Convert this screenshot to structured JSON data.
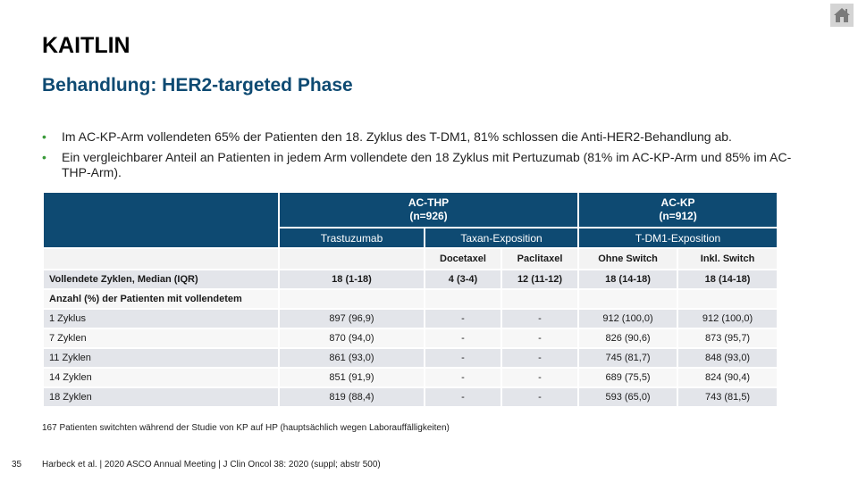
{
  "header": {
    "title": "KAITLIN",
    "subtitle": "Behandlung: HER2-targeted Phase"
  },
  "bullets": [
    "Im AC-KP-Arm vollendeten 65% der Patienten den 18. Zyklus des T-DM1, 81% schlossen die Anti-HER2-Behandlung ab.",
    "Ein vergleichbarer Anteil an Patienten in jedem Arm vollendete den 18 Zyklus mit Pertuzumab (81% im AC-KP-Arm und 85% im AC-THP-Arm)."
  ],
  "table": {
    "group_headers": [
      {
        "label": "AC-THP",
        "n": "(n=926)"
      },
      {
        "label": "AC-KP",
        "n": "(n=912)"
      }
    ],
    "sub_headers": [
      "Trastuzumab",
      "Taxan-Exposition",
      "T-DM1-Exposition"
    ],
    "sub_sub_headers": [
      "Docetaxel",
      "Paclitaxel",
      "Ohne Switch",
      "Inkl. Switch"
    ],
    "median_row": {
      "label": "Vollendete Zyklen, Median (IQR)",
      "values": [
        "18 (1-18)",
        "4 (3-4)",
        "12 (11-12)",
        "18 (14-18)",
        "18 (14-18)"
      ]
    },
    "section_label": "Anzahl (%) der Patienten mit vollendetem",
    "rows": [
      {
        "label": "1 Zyklus",
        "values": [
          "897 (96,9)",
          "-",
          "-",
          "912 (100,0)",
          "912 (100,0)"
        ]
      },
      {
        "label": "7 Zyklen",
        "values": [
          "870 (94,0)",
          "-",
          "-",
          "826 (90,6)",
          "873 (95,7)"
        ]
      },
      {
        "label": "11 Zyklen",
        "values": [
          "861 (93,0)",
          "-",
          "-",
          "745 (81,7)",
          "848 (93,0)"
        ]
      },
      {
        "label": "14 Zyklen",
        "values": [
          "851 (91,9)",
          "-",
          "-",
          "689 (75,5)",
          "824 (90,4)"
        ]
      },
      {
        "label": "18 Zyklen",
        "values": [
          "819 (88,4)",
          "-",
          "-",
          "593 (65,0)",
          "743 (81,5)"
        ]
      }
    ]
  },
  "footnote": "167 Patienten switchten während der Studie von KP auf HP (hauptsächlich wegen Laborauffälligkeiten)",
  "footer": {
    "page_number": "35",
    "citation": "Harbeck et al. | 2020 ASCO Annual Meeting | J Clin Oncol 38: 2020 (suppl; abstr 500)"
  },
  "icons": {
    "home": "home-icon"
  },
  "colors": {
    "accent": "#0e4a72",
    "bullet": "#3a9a3a"
  }
}
